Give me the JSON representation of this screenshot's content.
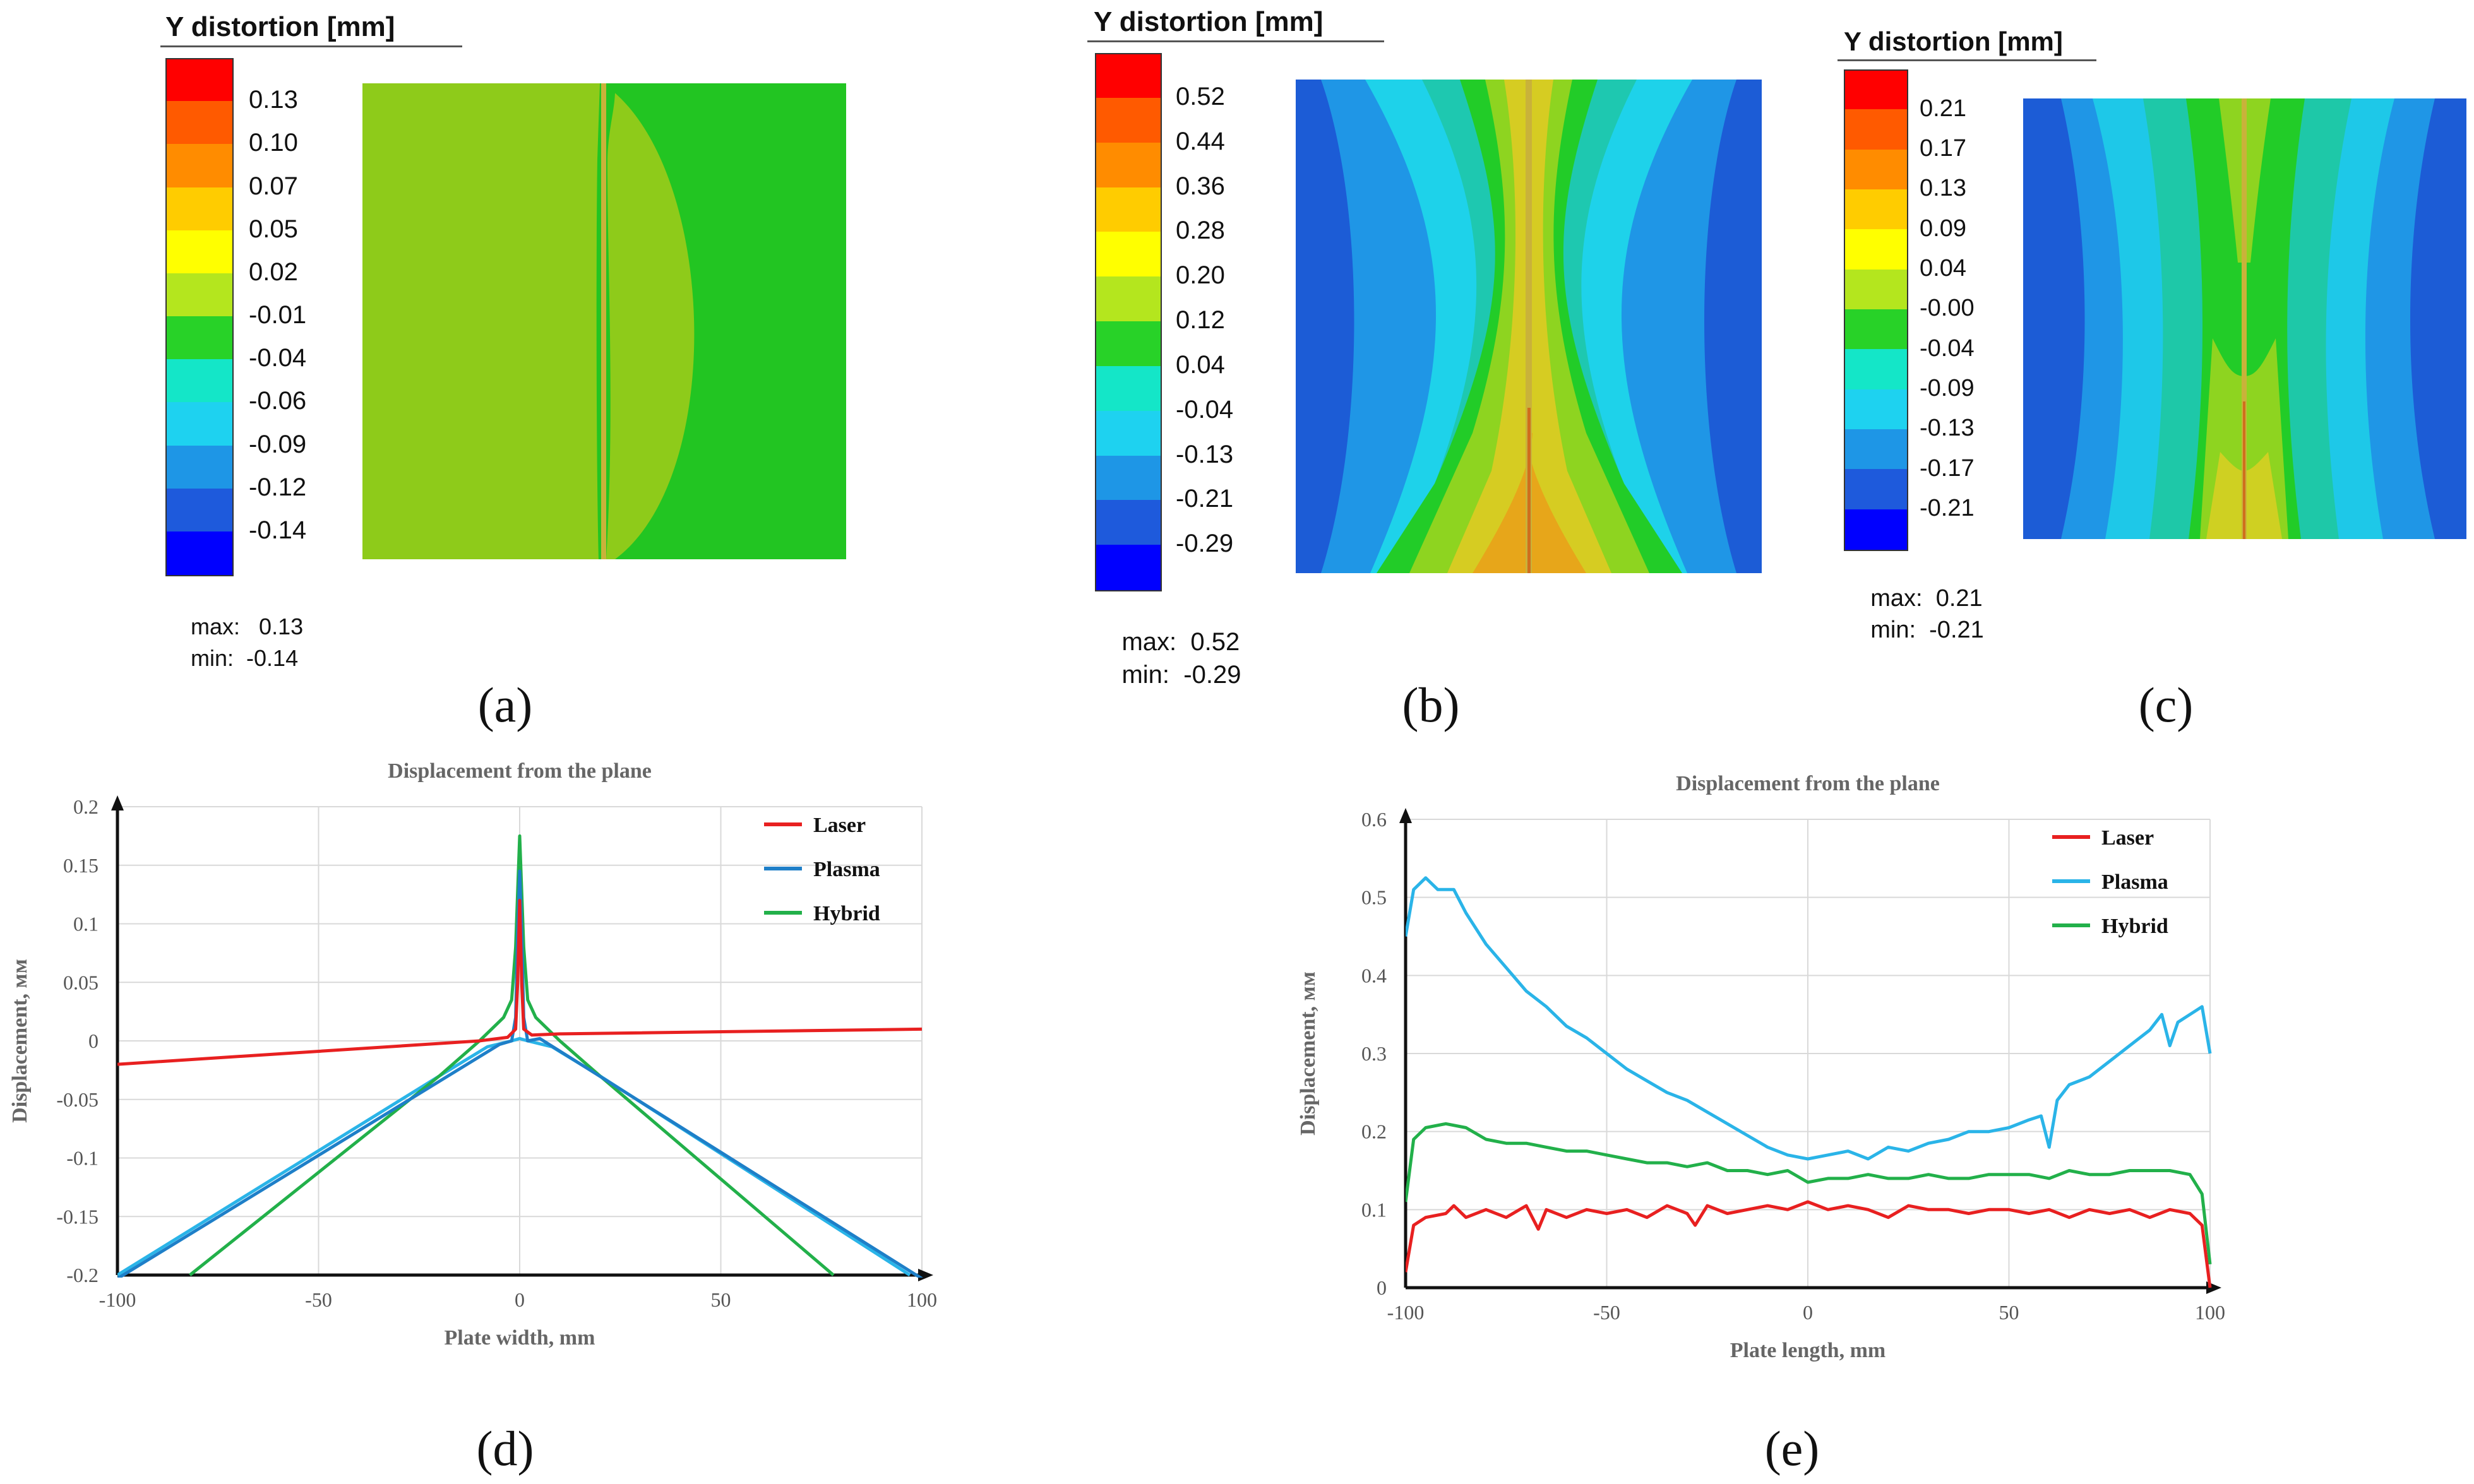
{
  "contour_panels": [
    {
      "caption": "(a)",
      "legend_title": "Y distortion [mm]",
      "levels": [
        "0.13",
        "0.10",
        "0.07",
        "0.05",
        "0.02",
        "-0.01",
        "-0.04",
        "-0.06",
        "-0.09",
        "-0.12",
        "-0.14"
      ],
      "max_label": "max:",
      "max_value": "0.13",
      "min_label": "min:",
      "min_value": "-0.14"
    },
    {
      "caption": "(b)",
      "legend_title": "Y distortion [mm]",
      "levels": [
        "0.52",
        "0.44",
        "0.36",
        "0.28",
        "0.20",
        "0.12",
        "0.04",
        "-0.04",
        "-0.13",
        "-0.21",
        "-0.29"
      ],
      "max_label": "max:",
      "max_value": "0.52",
      "min_label": "min:",
      "min_value": "-0.29"
    },
    {
      "caption": "(c)",
      "legend_title": "Y distortion [mm]",
      "levels": [
        "0.21",
        "0.17",
        "0.13",
        "0.09",
        "0.04",
        "-0.00",
        "-0.04",
        "-0.09",
        "-0.13",
        "-0.17",
        "-0.21"
      ],
      "max_label": "max:",
      "max_value": "0.21",
      "min_label": "min:",
      "min_value": "-0.21"
    }
  ],
  "colorbar_colors": [
    "#ff0000",
    "#ff5a00",
    "#ff8c00",
    "#ffcc00",
    "#ffff00",
    "#b4e61e",
    "#28d228",
    "#14e6c8",
    "#1ed2f0",
    "#1e96e6",
    "#1e5adc",
    "#0000ff"
  ],
  "chart_data": [
    {
      "caption": "(d)",
      "type": "line",
      "title": "Displacement from the plane",
      "xlabel": "Plate width, mm",
      "ylabel": "Displacement, мм",
      "xlim": [
        -100,
        100
      ],
      "ylim": [
        -0.2,
        0.2
      ],
      "x_ticks": [
        "-100",
        "-50",
        "0",
        "50",
        "100"
      ],
      "y_ticks": [
        "0.2",
        "0.15",
        "0.1",
        "0.05",
        "0",
        "-0.05",
        "-0.1",
        "-0.15",
        "-0.2"
      ],
      "legend_position": "top-right",
      "series": [
        {
          "name": "Laser",
          "color": "#e82020",
          "x": [
            -100,
            -10,
            -3,
            -1,
            -0.5,
            0,
            0.5,
            1,
            3,
            10,
            100
          ],
          "y": [
            -0.02,
            0.0,
            0.003,
            0.01,
            0.05,
            0.12,
            0.05,
            0.01,
            0.005,
            0.006,
            0.01
          ]
        },
        {
          "name": "Plasma",
          "color": "#1e7fc8",
          "x": [
            -100,
            -5,
            -2,
            -1,
            -0.5,
            0,
            0.5,
            1,
            2,
            5,
            100
          ],
          "y": [
            -0.203,
            -0.003,
            0.0,
            0.02,
            0.09,
            0.145,
            0.09,
            0.02,
            0.0,
            0.002,
            -0.203
          ]
        },
        {
          "name": "Hybrid",
          "color": "#22b04a",
          "x": [
            -82,
            -20,
            -10,
            -4,
            -2,
            -1,
            0,
            1,
            2,
            4,
            10,
            20,
            78
          ],
          "y": [
            -0.2,
            -0.03,
            0.0,
            0.02,
            0.035,
            0.08,
            0.175,
            0.08,
            0.035,
            0.02,
            0.0,
            -0.03,
            -0.2
          ]
        },
        {
          "name": "",
          "color": "#2ab4e8",
          "x": [
            -100,
            -20,
            -8,
            -2,
            0,
            2,
            8,
            20,
            97
          ],
          "y": [
            -0.2,
            -0.03,
            -0.005,
            0.0,
            0.002,
            0.0,
            -0.005,
            -0.03,
            -0.2
          ]
        }
      ]
    },
    {
      "caption": "(e)",
      "type": "line",
      "title": "Displacement from the plane",
      "xlabel": "Plate length, mm",
      "ylabel": "Displacement, мм",
      "xlim": [
        -100,
        100
      ],
      "ylim": [
        0,
        0.6
      ],
      "x_ticks": [
        "-100",
        "-50",
        "0",
        "50",
        "100"
      ],
      "y_ticks": [
        "0.6",
        "0.5",
        "0.4",
        "0.3",
        "0.2",
        "0.1",
        "0"
      ],
      "legend_position": "top-right",
      "series": [
        {
          "name": "Laser",
          "color": "#e82020",
          "x": [
            -100,
            -98,
            -95,
            -90,
            -88,
            -85,
            -80,
            -75,
            -70,
            -67,
            -65,
            -60,
            -55,
            -50,
            -45,
            -40,
            -35,
            -30,
            -28,
            -25,
            -20,
            -15,
            -10,
            -5,
            0,
            5,
            10,
            15,
            20,
            25,
            30,
            35,
            40,
            45,
            50,
            55,
            60,
            65,
            70,
            75,
            80,
            85,
            90,
            95,
            98,
            100
          ],
          "y": [
            0.02,
            0.08,
            0.09,
            0.095,
            0.105,
            0.09,
            0.1,
            0.09,
            0.105,
            0.075,
            0.1,
            0.09,
            0.1,
            0.095,
            0.1,
            0.09,
            0.105,
            0.095,
            0.08,
            0.105,
            0.095,
            0.1,
            0.105,
            0.1,
            0.11,
            0.1,
            0.105,
            0.1,
            0.09,
            0.105,
            0.1,
            0.1,
            0.095,
            0.1,
            0.1,
            0.095,
            0.1,
            0.09,
            0.1,
            0.095,
            0.1,
            0.09,
            0.1,
            0.095,
            0.08,
            0.0
          ]
        },
        {
          "name": "Plasma",
          "color": "#2ab4e8",
          "x": [
            -100,
            -98,
            -95,
            -92,
            -88,
            -85,
            -80,
            -75,
            -70,
            -65,
            -60,
            -55,
            -50,
            -45,
            -40,
            -35,
            -30,
            -25,
            -20,
            -15,
            -10,
            -5,
            0,
            5,
            10,
            15,
            20,
            25,
            30,
            35,
            40,
            45,
            50,
            55,
            58,
            60,
            62,
            65,
            70,
            75,
            80,
            85,
            88,
            90,
            92,
            95,
            98,
            100
          ],
          "y": [
            0.45,
            0.51,
            0.525,
            0.51,
            0.51,
            0.48,
            0.44,
            0.41,
            0.38,
            0.36,
            0.335,
            0.32,
            0.3,
            0.28,
            0.265,
            0.25,
            0.24,
            0.225,
            0.21,
            0.195,
            0.18,
            0.17,
            0.165,
            0.17,
            0.175,
            0.165,
            0.18,
            0.175,
            0.185,
            0.19,
            0.2,
            0.2,
            0.205,
            0.215,
            0.22,
            0.18,
            0.24,
            0.26,
            0.27,
            0.29,
            0.31,
            0.33,
            0.35,
            0.31,
            0.34,
            0.35,
            0.36,
            0.3
          ]
        },
        {
          "name": "Hybrid",
          "color": "#22b04a",
          "x": [
            -100,
            -98,
            -95,
            -90,
            -85,
            -80,
            -75,
            -70,
            -65,
            -60,
            -55,
            -50,
            -45,
            -40,
            -35,
            -30,
            -25,
            -20,
            -15,
            -10,
            -5,
            0,
            5,
            10,
            15,
            20,
            25,
            30,
            35,
            40,
            45,
            50,
            55,
            60,
            65,
            70,
            75,
            80,
            85,
            90,
            95,
            98,
            100
          ],
          "y": [
            0.11,
            0.19,
            0.205,
            0.21,
            0.205,
            0.19,
            0.185,
            0.185,
            0.18,
            0.175,
            0.175,
            0.17,
            0.165,
            0.16,
            0.16,
            0.155,
            0.16,
            0.15,
            0.15,
            0.145,
            0.15,
            0.135,
            0.14,
            0.14,
            0.145,
            0.14,
            0.14,
            0.145,
            0.14,
            0.14,
            0.145,
            0.145,
            0.145,
            0.14,
            0.15,
            0.145,
            0.145,
            0.15,
            0.15,
            0.15,
            0.145,
            0.12,
            0.03
          ]
        }
      ]
    }
  ]
}
